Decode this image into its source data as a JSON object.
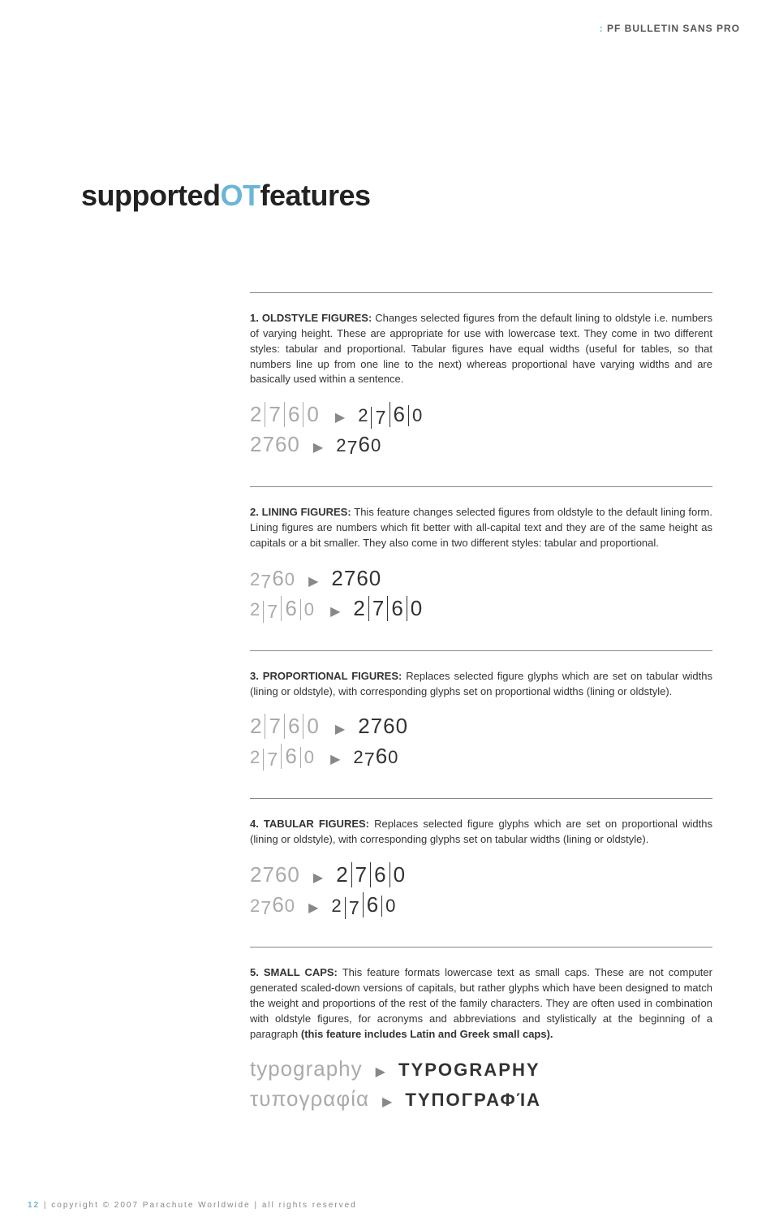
{
  "brand": {
    "marker": ":",
    "name": "PF BULLETIN SANS PRO"
  },
  "title": {
    "pre": "supported",
    "mid": "OT",
    "post": "features"
  },
  "sections": [
    {
      "lead": "1. OLDSTYLE FIGURES:",
      "body": " Changes selected figures from the default lining to oldstyle i.e. numbers of varying height. These are appropriate for use with lowercase text. They come in two different styles: tabular and proportional. Tabular figures have equal widths (useful for tables, so that numbers line up from one line to the next) whereas proportional have varying widths and are basically used within a sentence.",
      "note": "",
      "examples": [
        {
          "before": "2|7|6|0",
          "before_style": "tabular",
          "after": "2|7|6|0",
          "after_style": "tabular oldstyle"
        },
        {
          "before": "2760",
          "before_style": "",
          "after": "2760",
          "after_style": "oldstyle"
        }
      ]
    },
    {
      "lead": "2. LINING FIGURES:",
      "body": " This feature changes selected figures from oldstyle to the default lining form. Lining figures are numbers which fit better with all-capital text and they are of the same height as capitals or a bit smaller. They also come in two different styles: tabular and proportional.",
      "note": "",
      "examples": [
        {
          "before": "2760",
          "before_style": "oldstyle",
          "after": "2760",
          "after_style": ""
        },
        {
          "before": "2|7|6|0",
          "before_style": "tabular oldstyle",
          "after": "2|7|6|0",
          "after_style": "tabular"
        }
      ]
    },
    {
      "lead": "3. PROPORTIONAL FIGURES:",
      "body": " Replaces selected figure glyphs which are set on tabular widths (lining or oldstyle), with corresponding glyphs set on proportional widths (lining or oldstyle).",
      "note": "",
      "examples": [
        {
          "before": "2|7|6|0",
          "before_style": "tabular",
          "after": "2760",
          "after_style": ""
        },
        {
          "before": "2|7|6|0",
          "before_style": "tabular oldstyle",
          "after": "2760",
          "after_style": "oldstyle"
        }
      ]
    },
    {
      "lead": "4. TABULAR FIGURES:",
      "body": " Replaces selected figure glyphs which are set on proportional widths (lining or oldstyle), with corresponding glyphs set on tabular widths (lining or oldstyle).",
      "note": "",
      "examples": [
        {
          "before": "2760",
          "before_style": "",
          "after": "2|7|6|0",
          "after_style": "tabular"
        },
        {
          "before": "2760",
          "before_style": "oldstyle",
          "after": "2|7|6|0",
          "after_style": "tabular oldstyle"
        }
      ]
    },
    {
      "lead": "5. SMALL CAPS:",
      "body": " This feature formats lowercase text as small caps. These are not computer generated scaled-down versions of capitals, but rather glyphs which have been designed to match the weight and proportions of the rest of the family characters. They are often used in combination with oldstyle figures, for acronyms and abbreviations and stylistically at the beginning of a paragraph ",
      "note": "(this feature includes Latin and Greek small caps).",
      "examples": [
        {
          "before": "typography",
          "before_style": "text",
          "after": "TYPOGRAPHY",
          "after_style": "smallcaps"
        },
        {
          "before": "τυπογραφία",
          "before_style": "text",
          "after": "ΤΥΠΟΓΡΑΦΊΑ",
          "after_style": "smallcaps"
        }
      ]
    }
  ],
  "footer": {
    "page": "12",
    "text": " | copyright © 2007 Parachute Worldwide | all rights reserved"
  },
  "colors": {
    "accent": "#6bb6d6",
    "text": "#333333",
    "muted": "#aaaaaa",
    "rule": "#888888"
  }
}
